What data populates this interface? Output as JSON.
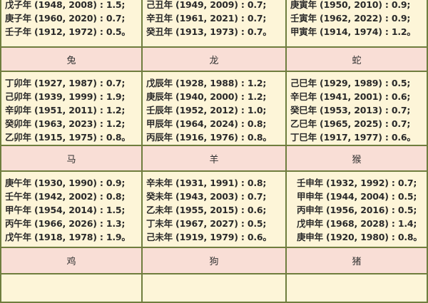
{
  "top_partial": [
    [
      "戊子年 (1948, 2008) : 1.5;",
      "庚子年 (1960, 2020) : 0.7;",
      "壬子年 (1912, 1972) : 0.5。"
    ],
    [
      "己丑年 (1949, 2009) : 0.7;",
      "辛丑年 (1961, 2021) : 0.7;",
      "癸丑年 (1913, 1973) : 0.7。"
    ],
    [
      "庚寅年 (1950, 2010) : 0.9;",
      "壬寅年 (1962, 2022) : 0.9;",
      "甲寅年 (1914, 1974) : 1.2。"
    ]
  ],
  "sections": [
    {
      "headers": [
        "兔",
        "龙",
        "蛇"
      ],
      "cells": [
        [
          "丁卯年 (1927, 1987) : 0.7;",
          "己卯年 (1939, 1999) : 1.9;",
          "辛卯年 (1951, 2011) : 1.2;",
          "癸卯年 (1963, 2023) : 1.2;",
          "乙卯年 (1915, 1975) : 0.8。"
        ],
        [
          "戊辰年 (1928, 1988) : 1.2;",
          "庚辰年 (1940, 2000) : 1.2;",
          "壬辰年 (1952, 2012) : 1.0;",
          "甲辰年 (1964, 2024) : 0.8;",
          "丙辰年 (1916, 1976) : 0.8。"
        ],
        [
          "己巳年 (1929, 1989) : 0.5;",
          "辛巳年 (1941, 2001) : 0.6;",
          "癸巳年 (1953, 2013) : 0.7;",
          "乙巳年 (1965, 2025) : 0.7;",
          "丁巳年 (1917, 1977) : 0.6。"
        ]
      ]
    },
    {
      "headers": [
        "马",
        "羊",
        "猴"
      ],
      "cells": [
        [
          "庚午年 (1930, 1990) : 0.9;",
          "壬午年 (1942, 2002) : 0.8;",
          "甲午年 (1954, 2014) : 1.5;",
          "丙午年 (1966, 2026) : 1.3;",
          "戊午年 (1918, 1978) : 1.9。"
        ],
        [
          "辛未年 (1931, 1991) : 0.8;",
          "癸未年 (1943, 2003) : 0.7;",
          "乙未年 (1955, 2015) : 0.6;",
          "丁未年 (1967, 2027) : 0.5;",
          "己未年 (1919, 1979) : 0.6。"
        ],
        [
          "壬申年 (1932, 1992) : 0.7;",
          "甲申年 (1944, 2004) : 0.5;",
          "丙申年 (1956, 2016) : 0.5;",
          "戊申年 (1968, 2028) : 1.4;",
          "庚申年 (1920, 1980) : 0.8。"
        ]
      ]
    },
    {
      "headers": [
        "鸡",
        "狗",
        "猪"
      ]
    }
  ]
}
